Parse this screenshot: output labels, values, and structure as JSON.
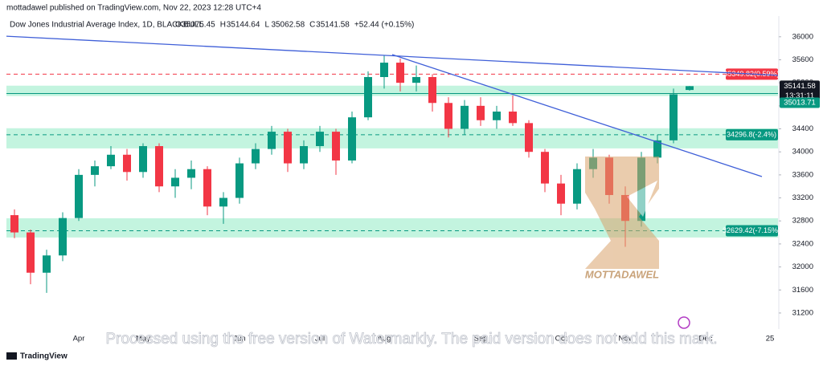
{
  "header": {
    "published": "mottadawel published on TradingView.com, Nov 22, 2023 12:28 UTC+4",
    "symbol": "Dow Jones Industrial Average Index, 1D, BLACKBULL",
    "ohlc_letters": [
      "O",
      "H",
      "L",
      "C"
    ],
    "change": "+52.44 (+0.15%)"
  },
  "chart_data": {
    "type": "candlestick",
    "categories": [
      null,
      null,
      null,
      null,
      "Apr",
      null,
      null,
      null,
      "May",
      null,
      null,
      null,
      null,
      null,
      "Jun",
      null,
      null,
      null,
      null,
      "Jul",
      null,
      null,
      null,
      "Aug",
      null,
      null,
      null,
      null,
      null,
      "Sep",
      null,
      null,
      null,
      null,
      "Oct",
      null,
      null,
      null,
      "Nov",
      null,
      null,
      null,
      null,
      "Dec",
      null,
      null,
      null,
      "25"
    ],
    "open": [
      32900,
      32600,
      31900,
      32200,
      32850,
      33600,
      33750,
      33950,
      33650,
      34100,
      33400,
      33550,
      33700,
      33050,
      33200,
      33800,
      34050,
      34350,
      33800,
      34100,
      34350,
      33850,
      34600,
      35300,
      35550,
      35200,
      35300,
      34850,
      34400,
      34800,
      34550,
      34700,
      34500,
      34000,
      33450,
      33100,
      33700,
      33900,
      33250,
      32800,
      33900,
      34200,
      35075.45,
      null,
      null,
      null,
      null,
      null
    ],
    "high": [
      33000,
      32650,
      32300,
      32950,
      33700,
      33850,
      34100,
      34050,
      34150,
      34150,
      33700,
      33850,
      33750,
      33300,
      33900,
      34150,
      34450,
      34400,
      34200,
      34450,
      34400,
      34700,
      35400,
      35680,
      35620,
      35500,
      35350,
      34950,
      34900,
      34950,
      34800,
      34980,
      34550,
      34050,
      33600,
      33800,
      34050,
      33950,
      33400,
      34000,
      34300,
      35100,
      35144.64,
      null,
      null,
      null,
      null,
      null
    ],
    "low": [
      32500,
      31700,
      31550,
      32100,
      32800,
      33400,
      33700,
      33500,
      33550,
      33300,
      33200,
      33350,
      32900,
      32750,
      33100,
      33700,
      33950,
      33650,
      33700,
      34000,
      33600,
      33800,
      34550,
      35100,
      35050,
      35050,
      34700,
      34250,
      34300,
      34450,
      34400,
      34450,
      33900,
      33300,
      32900,
      33000,
      33550,
      33100,
      32350,
      32700,
      33800,
      34150,
      35062.58,
      null,
      null,
      null,
      null,
      null
    ],
    "close": [
      32600,
      31900,
      32200,
      32850,
      33600,
      33750,
      33950,
      33650,
      34100,
      33400,
      33550,
      33700,
      33050,
      33200,
      33800,
      34050,
      34350,
      33800,
      34100,
      34350,
      33850,
      34600,
      35300,
      35550,
      35200,
      35300,
      34850,
      34400,
      34800,
      34550,
      34700,
      34500,
      34000,
      33450,
      33100,
      33700,
      33900,
      33250,
      32800,
      33900,
      34200,
      35000,
      35141.58,
      null,
      null,
      null,
      null,
      null
    ],
    "up_color": "#089981",
    "down_color": "#f23645",
    "ylim": [
      30990,
      36360
    ],
    "yticks": [
      31200,
      31600,
      32000,
      32400,
      32800,
      33200,
      33600,
      34000,
      34400,
      34800,
      35200,
      35600,
      36000
    ],
    "zones": [
      [
        34970,
        35150
      ],
      [
        34060,
        34410
      ],
      [
        32512,
        32846
      ]
    ],
    "zone_color": "rgba(40,215,140,0.28)",
    "levels": [
      {
        "value": 35349.82,
        "label": "35349.82(0.59%)",
        "color": "#f23645"
      },
      {
        "value": 34296.8,
        "label": "34296.8(-2.4%)",
        "color": "#089981"
      },
      {
        "value": 32629.42,
        "label": "32629.42(-7.15%)",
        "color": "#089981"
      }
    ],
    "price_line": {
      "value": 35013.71,
      "color": "#089981"
    },
    "countdown": "13:31:11",
    "trendlines": [
      {
        "color": "#3f5fd8",
        "points": [
          [
            -0.5,
            36010
          ],
          [
            47.5,
            35330
          ]
        ]
      },
      {
        "color": "#3f5fd8",
        "points": [
          [
            23.5,
            35690
          ],
          [
            46.5,
            33570
          ]
        ]
      }
    ]
  },
  "watermarks": {
    "author": "MOTTADAWEL",
    "notice": "Processed using the free version of Watermarkly. The paid version does not add this mark."
  },
  "footer": {
    "brand": "TradingView"
  }
}
